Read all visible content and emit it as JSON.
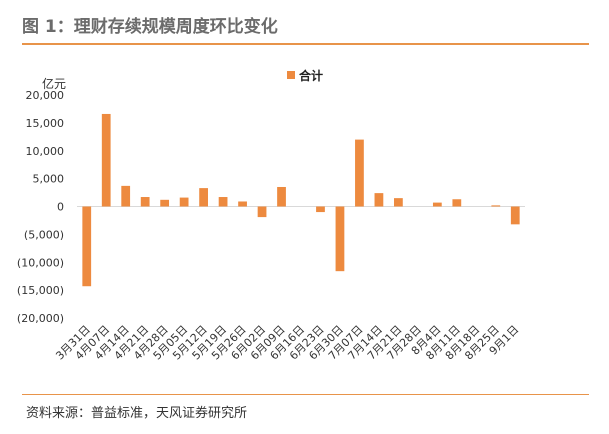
{
  "figure": {
    "title": "图 1：理财存续规模周度环比变化",
    "source": "资料来源：普益标准，天风证券研究所"
  },
  "colors": {
    "bar": "#ed8a3f",
    "accent_rule": "#e8944a",
    "axis": "#d9d9d9"
  },
  "chart_data": {
    "type": "bar",
    "ylabel": "亿元",
    "ylim": [
      -20000,
      20000
    ],
    "yticks": [
      20000,
      15000,
      10000,
      5000,
      0,
      -5000,
      -10000,
      -15000,
      -20000
    ],
    "ytick_labels": [
      "20,000",
      "15,000",
      "10,000",
      "5,000",
      "0",
      "(5,000)",
      "(10,000)",
      "(15,000)",
      "(20,000)"
    ],
    "grid": false,
    "legend_position": "top-center",
    "categories": [
      "3月31日",
      "4月07日",
      "4月14日",
      "4月21日",
      "4月28日",
      "5月05日",
      "5月12日",
      "5月19日",
      "5月26日",
      "6月02日",
      "6月09日",
      "6月16日",
      "6月23日",
      "6月30日",
      "7月07日",
      "7月14日",
      "7月21日",
      "7月28日",
      "8月4日",
      "8月11日",
      "8月18日",
      "8月25日",
      "9月1日"
    ],
    "series": [
      {
        "name": "合计",
        "values": [
          -14300,
          16600,
          3700,
          1700,
          1200,
          1600,
          3300,
          1700,
          900,
          -1900,
          3500,
          0,
          -1000,
          -11600,
          12000,
          2400,
          1500,
          0,
          700,
          1300,
          0,
          200,
          -3200
        ]
      }
    ]
  }
}
